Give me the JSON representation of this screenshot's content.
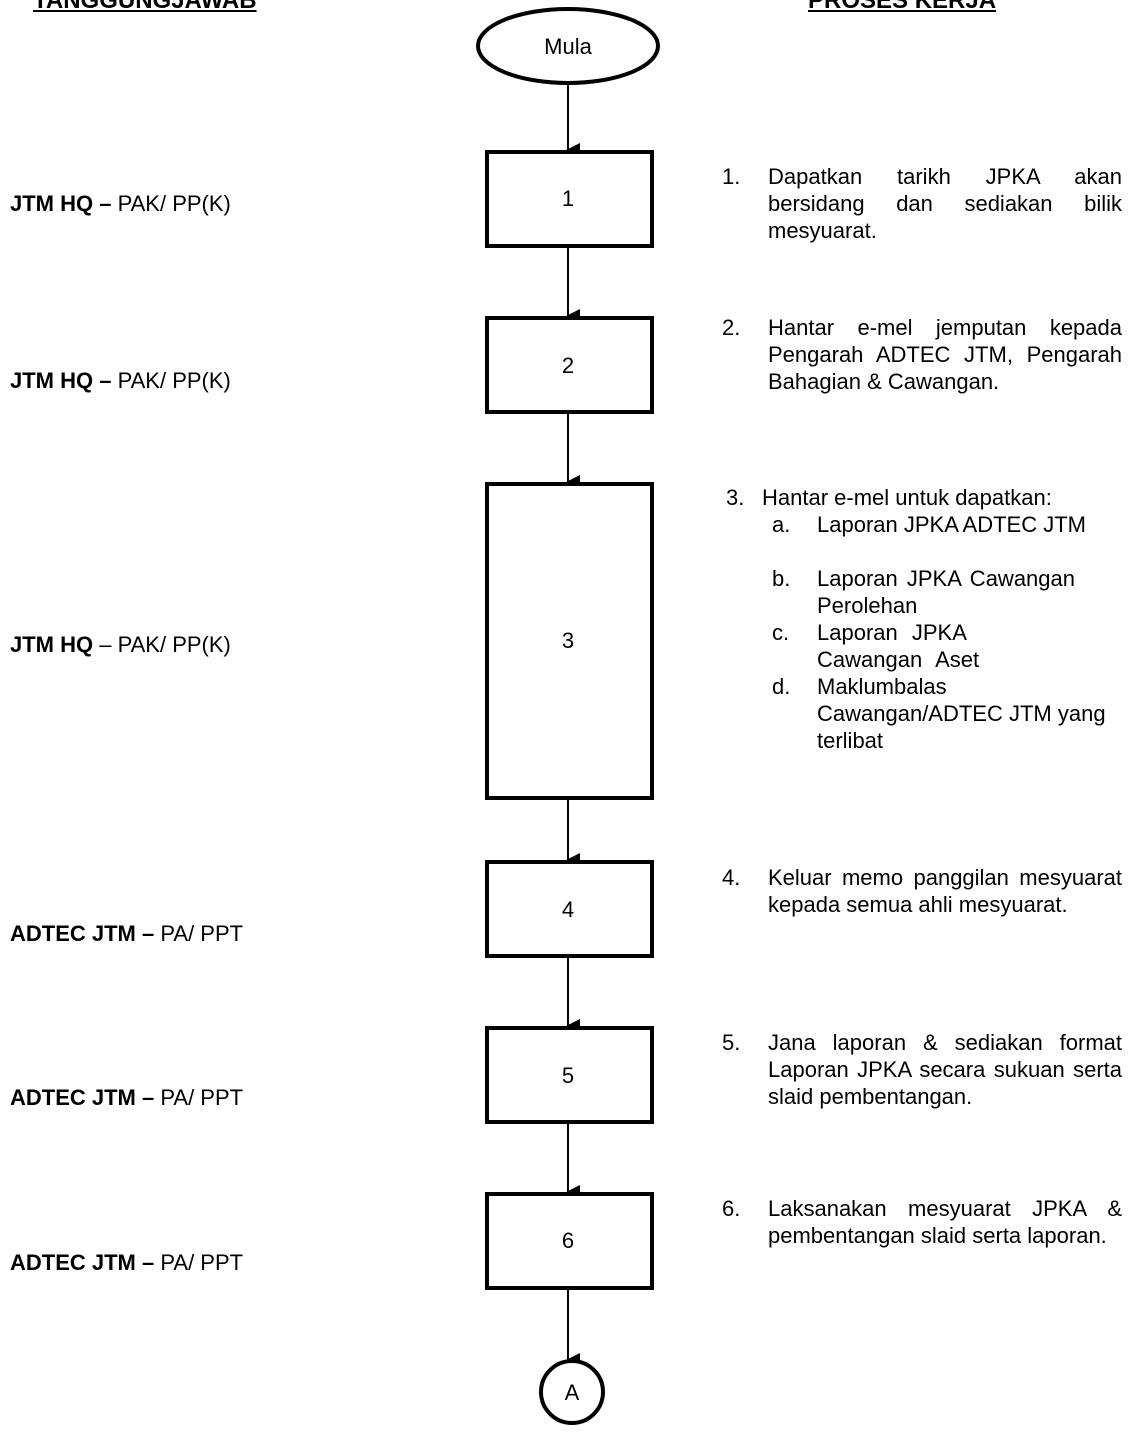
{
  "headers": {
    "left": "TANGGUNGJAWAB",
    "right": "PROSES KERJA"
  },
  "flow": {
    "start": "Mula",
    "boxes": [
      "1",
      "2",
      "3",
      "4",
      "5",
      "6"
    ],
    "connector": "A"
  },
  "responsibilities": [
    {
      "org": "JTM HQ",
      "dash": " – ",
      "role": "PAK/ PP(K)",
      "dash_bold": true
    },
    {
      "org": "JTM HQ",
      "dash": " – ",
      "role": "PAK/ PP(K)",
      "dash_bold": true
    },
    {
      "org": "JTM HQ",
      "dash": " – ",
      "role": "PAK/ PP(K)",
      "dash_bold": false
    },
    {
      "org": "ADTEC JTM",
      "dash": " – ",
      "role": "PA/ PPT",
      "dash_bold": true
    },
    {
      "org": "ADTEC JTM",
      "dash": " – ",
      "role": "PA/ PPT",
      "dash_bold": true
    },
    {
      "org": "ADTEC JTM",
      "dash": " – ",
      "role": "PA/ PPT",
      "dash_bold": true
    }
  ],
  "steps": [
    {
      "num": "1.",
      "text": "Dapatkan tarikh JPKA akan bersidang dan sediakan bilik mesyuarat."
    },
    {
      "num": "2.",
      "text": "Hantar e-mel jemputan kepada Pengarah ADTEC JTM, Pengarah Bahagian & Cawangan."
    },
    {
      "num": "3.",
      "text": "Hantar e-mel untuk dapatkan:",
      "items": [
        {
          "letter": "a.",
          "text": "Laporan JPKA ADTEC JTM"
        },
        {
          "letter": "b.",
          "text": "Laporan JPKA Cawangan Perolehan"
        },
        {
          "letter": "c.",
          "text": "Laporan JPKA Cawangan Aset"
        },
        {
          "letter": "d.",
          "text": "Maklumbalas Cawangan/ADTEC JTM yang terlibat"
        }
      ]
    },
    {
      "num": "4.",
      "text": "Keluar memo panggilan mesyuarat kepada semua ahli mesyuarat."
    },
    {
      "num": "5.",
      "text": "Jana laporan & sediakan format Laporan JPKA secara sukuan serta slaid pembentangan."
    },
    {
      "num": "6.",
      "text": "Laksanakan mesyuarat JPKA & pembentangan slaid serta laporan."
    }
  ]
}
